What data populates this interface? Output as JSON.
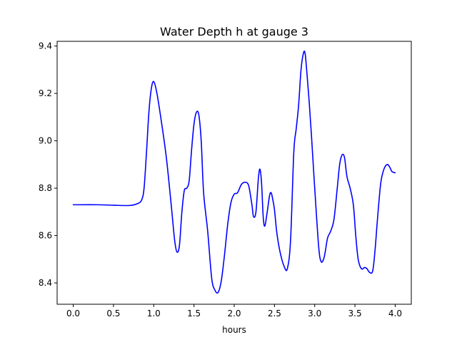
{
  "chart_data": {
    "type": "line",
    "title": "Water Depth h at gauge 3",
    "xlabel": "hours",
    "ylabel": "",
    "xlim": [
      -0.2,
      4.2
    ],
    "ylim": [
      8.31,
      9.42
    ],
    "xticks": [
      0.0,
      0.5,
      1.0,
      1.5,
      2.0,
      2.5,
      3.0,
      3.5,
      4.0
    ],
    "xtick_labels": [
      "0.0",
      "0.5",
      "1.0",
      "1.5",
      "2.0",
      "2.5",
      "3.0",
      "3.5",
      "4.0"
    ],
    "yticks": [
      8.4,
      8.6,
      8.8,
      9.0,
      9.2,
      9.4
    ],
    "ytick_labels": [
      "8.4",
      "8.6",
      "8.8",
      "9.0",
      "9.2",
      "9.4"
    ],
    "grid": false,
    "series": [
      {
        "color": "#0000ff",
        "x": [
          0.0,
          0.3,
          0.5,
          0.7,
          0.8,
          0.85,
          0.88,
          0.91,
          0.94,
          0.97,
          1.0,
          1.04,
          1.1,
          1.16,
          1.22,
          1.26,
          1.29,
          1.32,
          1.35,
          1.38,
          1.41,
          1.44,
          1.47,
          1.5,
          1.53,
          1.56,
          1.59,
          1.62,
          1.67,
          1.72,
          1.76,
          1.8,
          1.84,
          1.88,
          1.92,
          1.96,
          2.0,
          2.04,
          2.08,
          2.1,
          2.14,
          2.18,
          2.22,
          2.24,
          2.27,
          2.3,
          2.32,
          2.34,
          2.36,
          2.38,
          2.41,
          2.44,
          2.46,
          2.48,
          2.5,
          2.53,
          2.57,
          2.62,
          2.66,
          2.7,
          2.74,
          2.77,
          2.8,
          2.83,
          2.86,
          2.88,
          2.9,
          2.93,
          2.96,
          3.0,
          3.05,
          3.08,
          3.11,
          3.13,
          3.16,
          3.2,
          3.24,
          3.28,
          3.31,
          3.34,
          3.37,
          3.4,
          3.44,
          3.48,
          3.51,
          3.54,
          3.58,
          3.62,
          3.65,
          3.68,
          3.72,
          3.75,
          3.78,
          3.82,
          3.86,
          3.9,
          3.93,
          3.96,
          4.0
        ],
        "y": [
          8.73,
          8.73,
          8.728,
          8.727,
          8.735,
          8.75,
          8.8,
          8.95,
          9.12,
          9.22,
          9.25,
          9.2,
          9.07,
          8.92,
          8.72,
          8.58,
          8.53,
          8.56,
          8.7,
          8.79,
          8.8,
          8.83,
          8.96,
          9.07,
          9.12,
          9.11,
          9.0,
          8.78,
          8.62,
          8.42,
          8.37,
          8.36,
          8.41,
          8.52,
          8.65,
          8.74,
          8.775,
          8.78,
          8.81,
          8.82,
          8.825,
          8.81,
          8.73,
          8.68,
          8.7,
          8.84,
          8.88,
          8.82,
          8.68,
          8.64,
          8.7,
          8.77,
          8.78,
          8.75,
          8.71,
          8.61,
          8.53,
          8.47,
          8.46,
          8.58,
          8.95,
          9.05,
          9.15,
          9.3,
          9.37,
          9.37,
          9.3,
          9.17,
          9.02,
          8.8,
          8.55,
          8.49,
          8.5,
          8.53,
          8.59,
          8.62,
          8.67,
          8.8,
          8.9,
          8.94,
          8.93,
          8.85,
          8.8,
          8.73,
          8.6,
          8.5,
          8.46,
          8.465,
          8.46,
          8.445,
          8.45,
          8.54,
          8.67,
          8.82,
          8.88,
          8.9,
          8.89,
          8.87,
          8.865
        ]
      }
    ]
  }
}
